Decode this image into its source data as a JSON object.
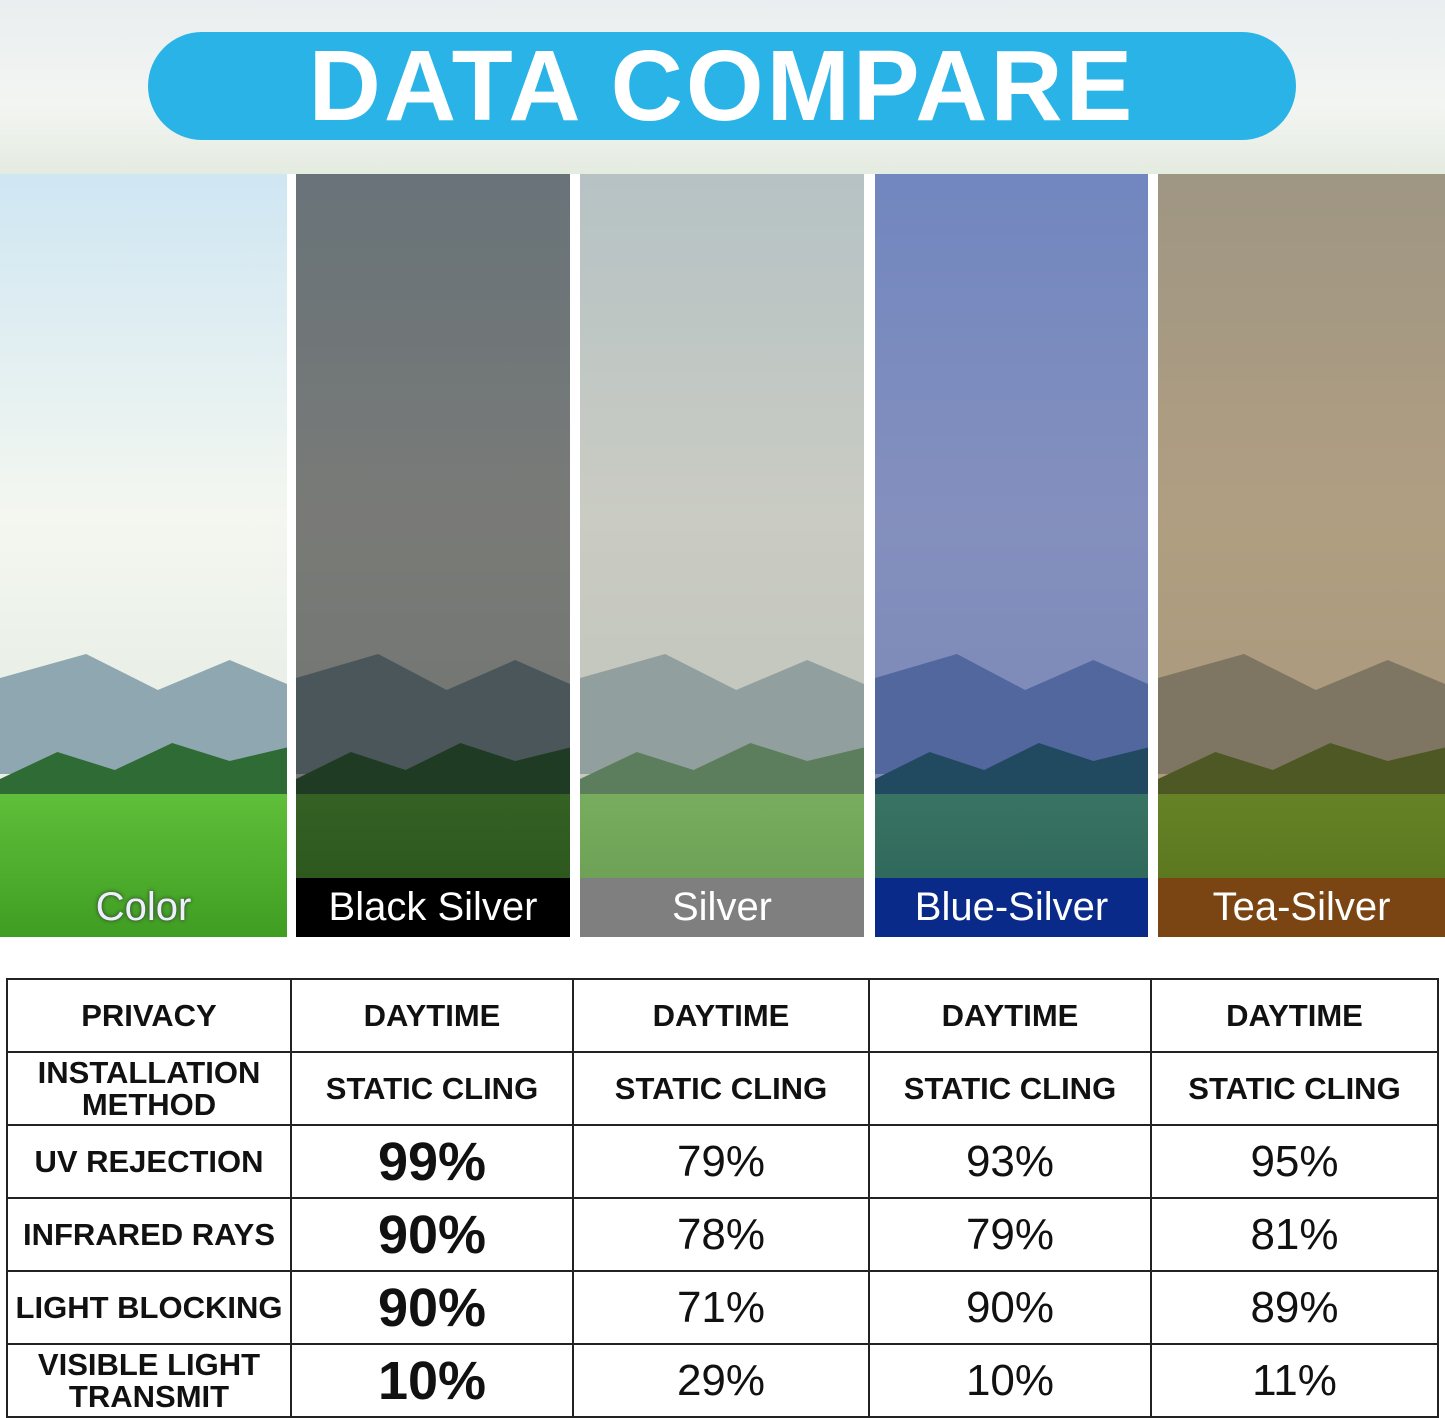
{
  "title": "DATA COMPARE",
  "panels": [
    {
      "label": "Color",
      "tint": "rgba(255,255,255,0)",
      "label_bg": "transparent"
    },
    {
      "label": "Black Silver",
      "tint": "rgba(20,20,20,0.55)",
      "label_bg": "#000000"
    },
    {
      "label": "Silver",
      "tint": "rgba(150,150,140,0.45)",
      "label_bg": "#7f7f7f"
    },
    {
      "label": "Blue-Silver",
      "tint": "rgba(20,40,140,0.5)",
      "label_bg": "#0a2a8a"
    },
    {
      "label": "Tea-Silver",
      "tint": "rgba(110,70,20,0.5)",
      "label_bg": "#7a4512"
    }
  ],
  "table": {
    "rows": [
      {
        "label": "PRIVACY",
        "values": [
          "DAYTIME",
          "DAYTIME",
          "DAYTIME",
          "DAYTIME"
        ]
      },
      {
        "label": "INSTALLATION METHOD",
        "values": [
          "STATIC CLING",
          "STATIC CLING",
          "STATIC CLING",
          "STATIC CLING"
        ]
      },
      {
        "label": "UV REJECTION",
        "values": [
          "99%",
          "79%",
          "93%",
          "95%"
        ]
      },
      {
        "label": "INFRARED RAYS",
        "values": [
          "90%",
          "78%",
          "79%",
          "81%"
        ]
      },
      {
        "label": "LIGHT BLOCKING",
        "values": [
          "90%",
          "71%",
          "90%",
          "89%"
        ]
      },
      {
        "label": "VISIBLE LIGHT TRANSMIT",
        "values": [
          "10%",
          "29%",
          "10%",
          "11%"
        ]
      }
    ]
  }
}
